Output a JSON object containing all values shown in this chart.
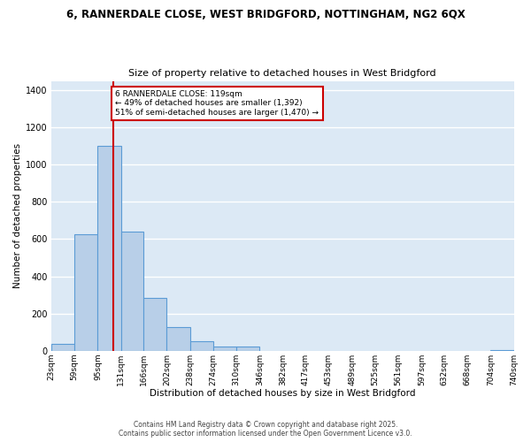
{
  "title1": "6, RANNERDALE CLOSE, WEST BRIDGFORD, NOTTINGHAM, NG2 6QX",
  "title2": "Size of property relative to detached houses in West Bridgford",
  "xlabel": "Distribution of detached houses by size in West Bridgford",
  "ylabel": "Number of detached properties",
  "bar_color": "#b8cfe8",
  "bar_edge_color": "#5b9bd5",
  "background_color": "#dce9f5",
  "grid_color": "#ffffff",
  "vline_color": "#cc0000",
  "vline_x": 119,
  "annotation_text": "6 RANNERDALE CLOSE: 119sqm\n← 49% of detached houses are smaller (1,392)\n51% of semi-detached houses are larger (1,470) →",
  "annotation_box_color": "#cc0000",
  "bin_edges": [
    23,
    59,
    95,
    131,
    166,
    202,
    238,
    274,
    310,
    346,
    382,
    417,
    453,
    489,
    525,
    561,
    597,
    632,
    668,
    704,
    740
  ],
  "bar_heights": [
    35,
    625,
    1100,
    640,
    285,
    125,
    50,
    22,
    22,
    0,
    0,
    0,
    0,
    0,
    0,
    0,
    0,
    0,
    0,
    5
  ],
  "ylim": [
    0,
    1450
  ],
  "yticks": [
    0,
    200,
    400,
    600,
    800,
    1000,
    1200,
    1400
  ],
  "footer1": "Contains HM Land Registry data © Crown copyright and database right 2025.",
  "footer2": "Contains public sector information licensed under the Open Government Licence v3.0."
}
